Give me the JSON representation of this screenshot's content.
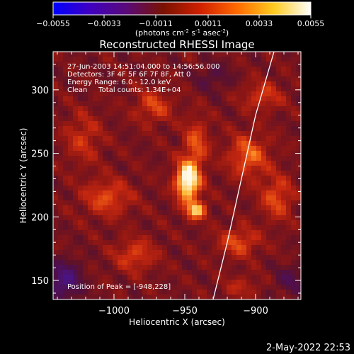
{
  "colorbar": {
    "ticks": [
      "-0.0055",
      "-0.0033",
      "-0.0011",
      "0.0011",
      "0.0033",
      "0.0055"
    ],
    "unit_prefix": "(photons cm",
    "unit_exp1": "-2",
    "unit_mid1": " s",
    "unit_exp2": "-1",
    "unit_mid2": " asec",
    "unit_exp3": "-2",
    "unit_suffix": ")",
    "colors": [
      "#0000ff",
      "#4000c0",
      "#5a0a78",
      "#7a1200",
      "#d02000",
      "#ff6a00",
      "#ffcc20",
      "#ffffff"
    ]
  },
  "plot": {
    "title": "Reconstructed RHESSI Image",
    "info_lines": [
      "27-Jun-2003 14:51:04.000 to 14:56:56.000",
      "Detectors: 3F 4F 5F 6F 7F 8F, Att 0",
      "Energy Range: 6.0 - 12.0 keV",
      "Clean     Total counts: 1.34E+04"
    ],
    "peak_label": "Position of Peak = [-948,228]"
  },
  "footer": {
    "date": "2-May-2022 22:53"
  },
  "chart_data": {
    "type": "heatmap",
    "title": "Reconstructed RHESSI Image",
    "xlabel": "Heliocentric X (arcsec)",
    "ylabel": "Heliocentric Y (arcsec)",
    "xlim": [
      -1043,
      -868
    ],
    "ylim": [
      135,
      330
    ],
    "xticks": [
      -1000,
      -950,
      -900
    ],
    "xtick_labels": [
      "−1000",
      "−950",
      "−900"
    ],
    "yticks": [
      150,
      200,
      250,
      300
    ],
    "ytick_labels": [
      "150",
      "200",
      "250",
      "300"
    ],
    "colorbar_range": [
      -0.0055,
      0.0055
    ],
    "peak": {
      "x": -948,
      "y": 228
    },
    "limb_curve": [
      [
        -930,
        135
      ],
      [
        -920,
        180
      ],
      [
        -910,
        230
      ],
      [
        -900,
        280
      ],
      [
        -887,
        330
      ]
    ],
    "sources": [
      {
        "x": -948,
        "y": 228,
        "amp": 0.0055,
        "sx": 6,
        "sy": 11
      },
      {
        "x": -942,
        "y": 205,
        "amp": 0.0038,
        "sx": 5,
        "sy": 5
      },
      {
        "x": -942,
        "y": 258,
        "amp": 0.0022,
        "sx": 6,
        "sy": 14
      },
      {
        "x": -1005,
        "y": 215,
        "amp": 0.0022,
        "sx": 12,
        "sy": 10
      },
      {
        "x": -985,
        "y": 170,
        "amp": 0.002,
        "sx": 10,
        "sy": 9
      },
      {
        "x": -972,
        "y": 287,
        "amp": 0.002,
        "sx": 9,
        "sy": 9
      },
      {
        "x": -1022,
        "y": 262,
        "amp": 0.0016,
        "sx": 9,
        "sy": 14
      },
      {
        "x": -905,
        "y": 248,
        "amp": 0.0026,
        "sx": 10,
        "sy": 12
      },
      {
        "x": -885,
        "y": 215,
        "amp": 0.0022,
        "sx": 8,
        "sy": 12
      },
      {
        "x": -912,
        "y": 180,
        "amp": 0.0022,
        "sx": 10,
        "sy": 8
      },
      {
        "x": -895,
        "y": 295,
        "amp": 0.0018,
        "sx": 10,
        "sy": 8
      },
      {
        "x": -910,
        "y": 145,
        "amp": 0.0012,
        "sx": 9,
        "sy": 6
      },
      {
        "x": -1035,
        "y": 150,
        "amp": -0.0034,
        "sx": 8,
        "sy": 10
      },
      {
        "x": -875,
        "y": 150,
        "amp": -0.0016,
        "sx": 8,
        "sy": 8
      },
      {
        "x": -930,
        "y": 310,
        "amp": -0.0012,
        "sx": 9,
        "sy": 8
      }
    ]
  }
}
